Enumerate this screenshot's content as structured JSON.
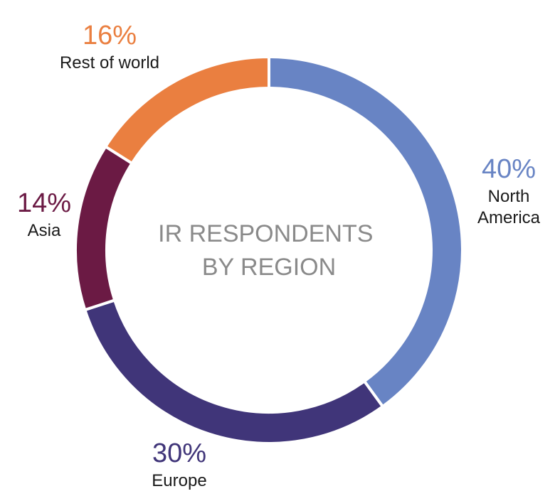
{
  "chart_data": {
    "type": "pie",
    "title": "IR RESPONDENTS BY REGION",
    "title_lines": [
      "IR RESPONDENTS",
      "BY REGION"
    ],
    "start": "12 o'clock",
    "direction": "clockwise",
    "donut": true,
    "slices": [
      {
        "label": "North America",
        "label_lines": [
          "North",
          "America"
        ],
        "value": 40,
        "display": "40%",
        "color": "#6884c4"
      },
      {
        "label": "Europe",
        "label_lines": [
          "Europe"
        ],
        "value": 30,
        "display": "30%",
        "color": "#403579"
      },
      {
        "label": "Asia",
        "label_lines": [
          "Asia"
        ],
        "value": 14,
        "display": "14%",
        "color": "#6b1a44"
      },
      {
        "label": "Rest of world",
        "label_lines": [
          "Rest of world"
        ],
        "value": 16,
        "display": "16%",
        "color": "#ea7f40"
      }
    ]
  }
}
